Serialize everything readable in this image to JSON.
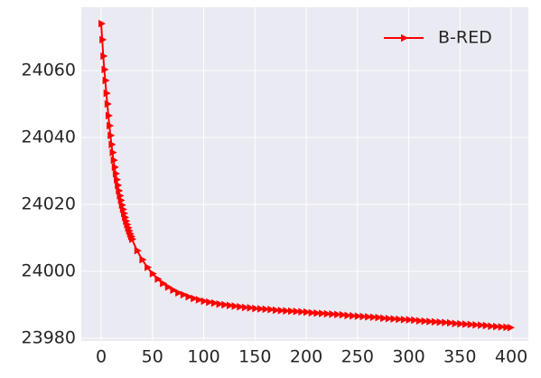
{
  "chart_data": {
    "type": "line",
    "legend": "upper right",
    "grid": true,
    "background": "#eaeaf2",
    "xlim": [
      -19.4,
      416.7
    ],
    "ylim": [
      23979.2,
      24078.9
    ],
    "xticks": [
      0,
      50,
      100,
      150,
      200,
      250,
      300,
      350,
      400
    ],
    "yticks": [
      23980,
      24000,
      24020,
      24040,
      24060
    ],
    "x": [
      0,
      1,
      2,
      3,
      4,
      5,
      6,
      7,
      8,
      9,
      10,
      11,
      12,
      13,
      14,
      15,
      16,
      17,
      18,
      19,
      20,
      21,
      22,
      23,
      24,
      25,
      26,
      27,
      28,
      29,
      30,
      35,
      40,
      45,
      50,
      55,
      60,
      65,
      70,
      75,
      80,
      85,
      90,
      95,
      100,
      105,
      110,
      115,
      120,
      125,
      130,
      135,
      140,
      145,
      150,
      155,
      160,
      165,
      170,
      175,
      180,
      185,
      190,
      195,
      200,
      205,
      210,
      215,
      220,
      225,
      230,
      235,
      240,
      245,
      250,
      255,
      260,
      265,
      270,
      275,
      280,
      285,
      290,
      295,
      300,
      305,
      310,
      315,
      320,
      325,
      330,
      335,
      340,
      345,
      350,
      355,
      360,
      365,
      370,
      375,
      380,
      385,
      390,
      395,
      399
    ],
    "series": [
      {
        "name": "B-RED",
        "color": "#ff0000",
        "marker": "triangle-right",
        "values": [
          24074,
          24069.2,
          24064.3,
          24060.3,
          24057,
          24053.2,
          24050,
          24046.5,
          24043.5,
          24040.6,
          24037.9,
          24035.5,
          24033.2,
          24031.1,
          24029.2,
          24027.4,
          24025.7,
          24024.1,
          24022.6,
          24021.2,
          24019.8,
          24018.5,
          24017.3,
          24016.1,
          24015,
          24014,
          24013,
          24012.1,
          24011.2,
          24010.4,
          24009.6,
          24006.2,
          24003.5,
          24001.2,
          23999.3,
          23997.7,
          23996.4,
          23995.3,
          23994.4,
          23993.6,
          23993,
          23992.4,
          23991.9,
          23991.5,
          23991.1,
          23990.8,
          23990.5,
          23990.2,
          23990,
          23989.8,
          23989.6,
          23989.4,
          23989.2,
          23989.1,
          23988.9,
          23988.8,
          23988.7,
          23988.6,
          23988.4,
          23988.3,
          23988.2,
          23988.1,
          23988,
          23987.9,
          23987.8,
          23987.6,
          23987.5,
          23987.4,
          23987.3,
          23987.2,
          23987.1,
          23987,
          23986.8,
          23986.7,
          23986.6,
          23986.5,
          23986.4,
          23986.3,
          23986.2,
          23986,
          23985.9,
          23985.8,
          23985.7,
          23985.6,
          23985.5,
          23985.4,
          23985.2,
          23985.1,
          23985,
          23984.9,
          23984.8,
          23984.7,
          23984.6,
          23984.4,
          23984.3,
          23984.2,
          23984.1,
          23984,
          23983.9,
          23983.8,
          23983.6,
          23983.5,
          23983.4,
          23983.3,
          23983.2
        ]
      }
    ]
  }
}
